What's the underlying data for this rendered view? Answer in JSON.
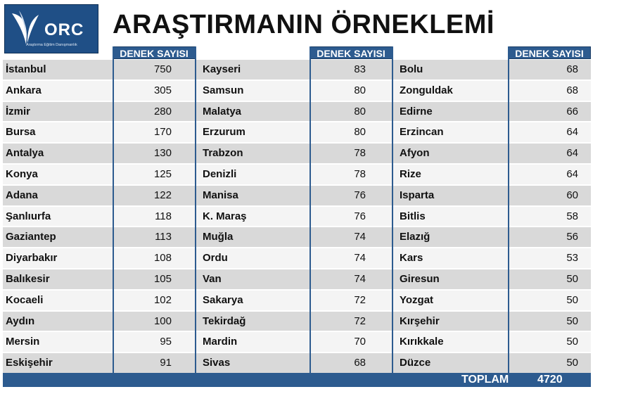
{
  "logo": {
    "name": "ORC",
    "tagline": "Araştırma Eğitim Danışmanlık"
  },
  "title": "ARAŞTIRMANIN ÖRNEKLEMİ",
  "column_header": "DENEK SAYISI",
  "columns": [
    {
      "rows": [
        {
          "city": "İstanbul",
          "count": "750"
        },
        {
          "city": "Ankara",
          "count": "305"
        },
        {
          "city": "İzmir",
          "count": "280"
        },
        {
          "city": "Bursa",
          "count": "170"
        },
        {
          "city": "Antalya",
          "count": "130"
        },
        {
          "city": "Konya",
          "count": "125"
        },
        {
          "city": "Adana",
          "count": "122"
        },
        {
          "city": "Şanlıurfa",
          "count": "118"
        },
        {
          "city": "Gaziantep",
          "count": "113"
        },
        {
          "city": "Diyarbakır",
          "count": "108"
        },
        {
          "city": "Balıkesir",
          "count": "105"
        },
        {
          "city": "Kocaeli",
          "count": "102"
        },
        {
          "city": "Aydın",
          "count": "100"
        },
        {
          "city": "Mersin",
          "count": "95"
        },
        {
          "city": "Eskişehir",
          "count": "91"
        }
      ]
    },
    {
      "rows": [
        {
          "city": "Kayseri",
          "count": "83"
        },
        {
          "city": "Samsun",
          "count": "80"
        },
        {
          "city": "Malatya",
          "count": "80"
        },
        {
          "city": "Erzurum",
          "count": "80"
        },
        {
          "city": "Trabzon",
          "count": "78"
        },
        {
          "city": "Denizli",
          "count": "78"
        },
        {
          "city": "Manisa",
          "count": "76"
        },
        {
          "city": "K. Maraş",
          "count": "76"
        },
        {
          "city": "Muğla",
          "count": "74"
        },
        {
          "city": "Ordu",
          "count": "74"
        },
        {
          "city": "Van",
          "count": "74"
        },
        {
          "city": "Sakarya",
          "count": "72"
        },
        {
          "city": "Tekirdağ",
          "count": "72"
        },
        {
          "city": "Mardin",
          "count": "70"
        },
        {
          "city": "Sivas",
          "count": "68"
        }
      ]
    },
    {
      "rows": [
        {
          "city": "Bolu",
          "count": "68"
        },
        {
          "city": "Zonguldak",
          "count": "68"
        },
        {
          "city": "Edirne",
          "count": "66"
        },
        {
          "city": "Erzincan",
          "count": "64"
        },
        {
          "city": "Afyon",
          "count": "64"
        },
        {
          "city": "Rize",
          "count": "64"
        },
        {
          "city": "Isparta",
          "count": "60"
        },
        {
          "city": "Bitlis",
          "count": "58"
        },
        {
          "city": "Elazığ",
          "count": "56"
        },
        {
          "city": "Kars",
          "count": "53"
        },
        {
          "city": "Giresun",
          "count": "50"
        },
        {
          "city": "Yozgat",
          "count": "50"
        },
        {
          "city": "Kırşehir",
          "count": "50"
        },
        {
          "city": "Kırıkkale",
          "count": "50"
        },
        {
          "city": "Düzce",
          "count": "50"
        }
      ]
    }
  ],
  "total": {
    "label": "TOPLAM",
    "value": "4720"
  },
  "colors": {
    "header_blue": "#2d5b8f",
    "row_gray": "#d9d9d9",
    "row_light": "#f4f4f4"
  }
}
